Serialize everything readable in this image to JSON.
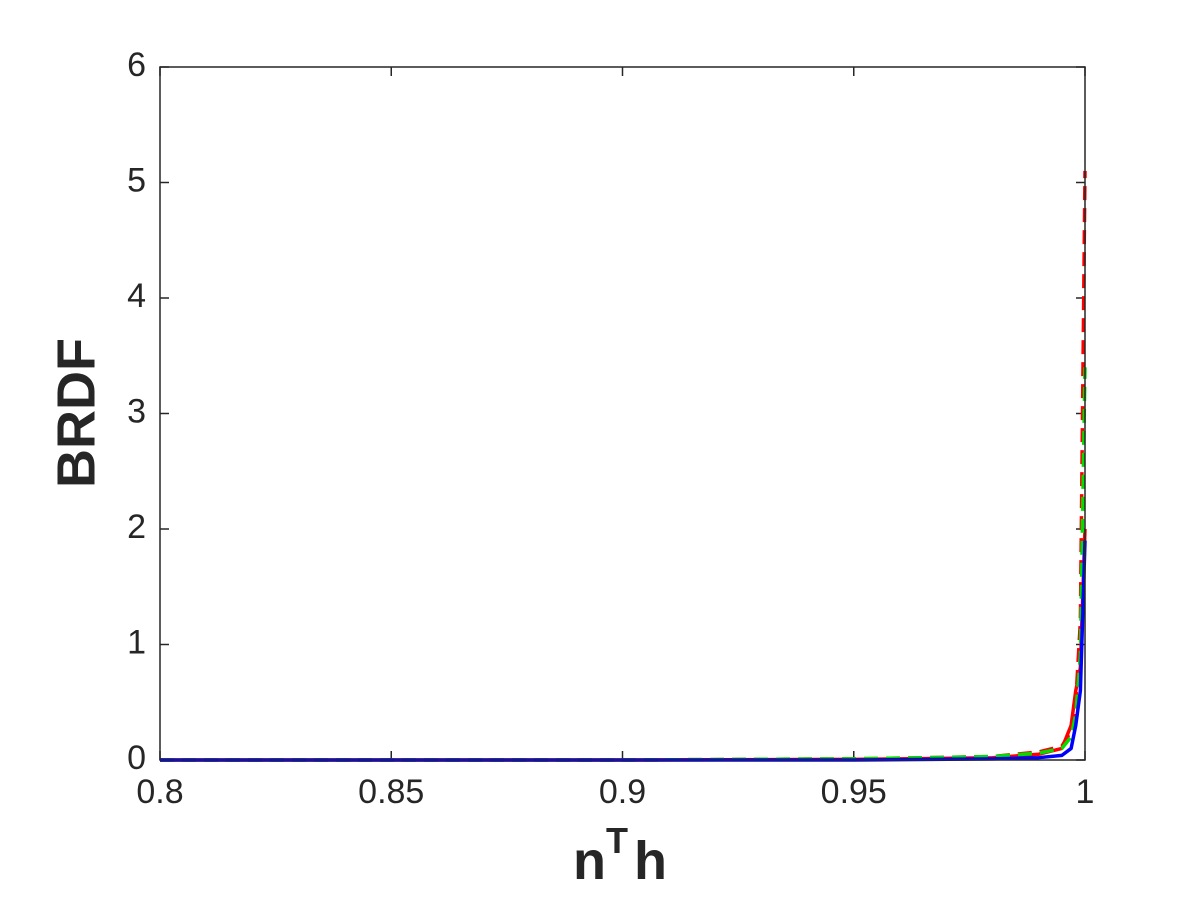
{
  "chart_data": {
    "type": "line",
    "xlabel": [
      "n",
      "T",
      "h"
    ],
    "ylabel": "BRDF",
    "x": [
      0.8,
      0.85,
      0.9,
      0.95,
      0.98,
      0.99,
      0.995,
      0.997,
      0.998,
      0.999,
      1.0
    ],
    "series": [
      {
        "color": "#ff0000",
        "style": "solid",
        "values": [
          0,
          0,
          0,
          0.005,
          0.02,
          0.05,
          0.1,
          0.3,
          0.6,
          0.8,
          2.0
        ]
      },
      {
        "color": "#ff0000",
        "style": "dashed",
        "values": [
          0,
          0,
          0,
          0.01,
          0.03,
          0.07,
          0.12,
          0.25,
          0.5,
          1.2,
          5.1
        ]
      },
      {
        "color": "#00dd00",
        "style": "dashed",
        "values": [
          0,
          0,
          0,
          0.01,
          0.03,
          0.06,
          0.1,
          0.2,
          0.4,
          0.9,
          3.4
        ]
      },
      {
        "color": "#0000ff",
        "style": "solid",
        "values": [
          0,
          0,
          0,
          0,
          0.01,
          0.02,
          0.04,
          0.1,
          0.3,
          0.6,
          1.9
        ]
      }
    ],
    "xlim": [
      0.8,
      1
    ],
    "xticks": [
      0.8,
      0.85,
      0.9,
      0.95,
      1
    ],
    "ylim": [
      0,
      6
    ],
    "yticks": [
      0,
      1,
      2,
      3,
      4,
      5,
      6
    ],
    "grid": false
  }
}
